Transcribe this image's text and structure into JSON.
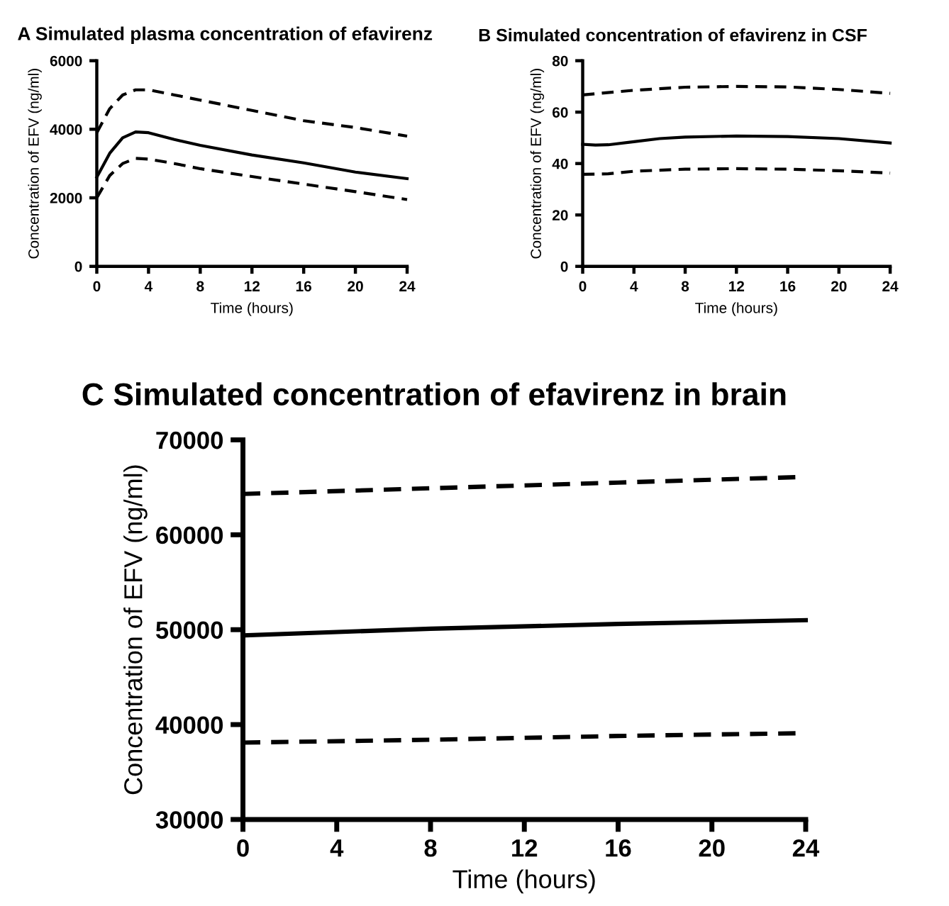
{
  "chart_data": [
    {
      "type": "line",
      "title": "A Simulated plasma concentration of efavirenz",
      "xlabel": "Time (hours)",
      "ylabel": "Concentration of EFV (ng/ml)",
      "xlim": [
        0,
        24
      ],
      "xticks": [
        0,
        4,
        8,
        12,
        16,
        20,
        24
      ],
      "ylim": [
        0,
        6000
      ],
      "yticks": [
        0,
        2000,
        4000,
        6000
      ],
      "grid": false,
      "marker": "none",
      "series": [
        {
          "color": "#000000",
          "line_style": "dashed",
          "x": [
            0,
            1,
            2,
            3,
            4,
            6,
            8,
            12,
            16,
            20,
            24
          ],
          "values": [
            3900,
            4600,
            5000,
            5150,
            5150,
            5000,
            4850,
            4550,
            4250,
            4050,
            3800
          ]
        },
        {
          "color": "#000000",
          "line_style": "solid",
          "x": [
            0,
            1,
            2,
            3,
            4,
            6,
            8,
            12,
            16,
            20,
            24
          ],
          "values": [
            2600,
            3300,
            3750,
            3920,
            3900,
            3700,
            3530,
            3250,
            3020,
            2750,
            2560
          ]
        },
        {
          "color": "#000000",
          "line_style": "dashed",
          "x": [
            0,
            1,
            2,
            3,
            4,
            6,
            8,
            12,
            16,
            20,
            24
          ],
          "values": [
            2000,
            2650,
            3000,
            3150,
            3130,
            3000,
            2850,
            2620,
            2400,
            2180,
            1950
          ]
        }
      ]
    },
    {
      "type": "line",
      "title": "B Simulated concentration of efavirenz in CSF",
      "xlabel": "Time (hours)",
      "ylabel": "Concentration of EFV (ng/ml)",
      "xlim": [
        0,
        24
      ],
      "xticks": [
        0,
        4,
        8,
        12,
        16,
        20,
        24
      ],
      "ylim": [
        0,
        80
      ],
      "yticks": [
        0,
        20,
        40,
        60,
        80
      ],
      "grid": false,
      "marker": "none",
      "series": [
        {
          "color": "#000000",
          "line_style": "dashed",
          "x": [
            0,
            4,
            8,
            12,
            16,
            20,
            24
          ],
          "values": [
            66.7,
            68.5,
            69.7,
            70,
            69.8,
            68.8,
            67.3
          ]
        },
        {
          "color": "#000000",
          "line_style": "solid",
          "x": [
            0,
            1,
            2,
            4,
            6,
            8,
            12,
            16,
            20,
            24
          ],
          "values": [
            47.5,
            47.2,
            47.3,
            48.5,
            49.7,
            50.3,
            50.7,
            50.5,
            49.7,
            48
          ]
        },
        {
          "color": "#000000",
          "line_style": "dashed",
          "x": [
            0,
            2,
            4,
            8,
            12,
            16,
            20,
            24
          ],
          "values": [
            35.8,
            36,
            37,
            37.8,
            38,
            37.8,
            37.2,
            36.3
          ]
        }
      ]
    },
    {
      "type": "line",
      "title": "C Simulated concentration of efavirenz in brain",
      "xlabel": "Time (hours)",
      "ylabel": "Concentration of EFV (ng/ml)",
      "xlim": [
        0,
        24
      ],
      "xticks": [
        0,
        4,
        8,
        12,
        16,
        20,
        24
      ],
      "ylim": [
        30000,
        70000
      ],
      "yticks": [
        30000,
        40000,
        50000,
        60000,
        70000
      ],
      "grid": false,
      "marker": "none",
      "series": [
        {
          "color": "#000000",
          "line_style": "dashed",
          "x": [
            0,
            8,
            16,
            24
          ],
          "values": [
            64300,
            64900,
            65500,
            66100
          ]
        },
        {
          "color": "#000000",
          "line_style": "solid",
          "x": [
            0,
            8,
            16,
            24
          ],
          "values": [
            49400,
            50100,
            50600,
            51000
          ]
        },
        {
          "color": "#000000",
          "line_style": "dashed",
          "x": [
            0,
            8,
            16,
            24
          ],
          "values": [
            38100,
            38400,
            38800,
            39100
          ]
        }
      ]
    }
  ]
}
